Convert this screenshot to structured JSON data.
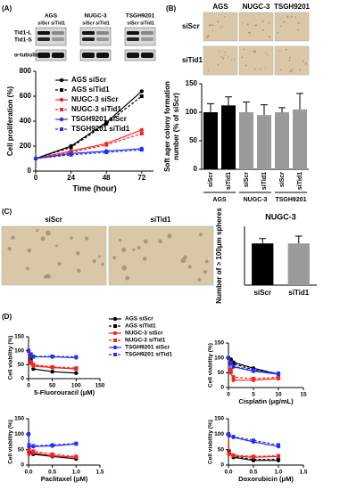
{
  "panel_labels": [
    "(A)",
    "(B)",
    "(C)",
    "(D)"
  ],
  "blot": {
    "groups": [
      "AGS",
      "NUGC-3",
      "TSGH9201"
    ],
    "lanes": [
      "siScr",
      "siTid1",
      "siScr",
      "siTid1",
      "siScr",
      "siTid1"
    ],
    "rows": [
      "Tid1-L",
      "Tid1-S",
      "α-tubulin"
    ]
  },
  "colony_photos": {
    "columns": [
      "AGS",
      "NUGC-3",
      "TSGH9201"
    ],
    "rows": [
      "siScr",
      "siTid1"
    ]
  },
  "sphere_photos": {
    "labels": [
      "siScr",
      "siTid1"
    ]
  },
  "chart_data": [
    {
      "type": "line",
      "xlabel": "Time (hour)",
      "ylabel": "Cell proliferation (%)",
      "x": [
        0,
        24,
        48,
        72
      ],
      "xlim": [
        0,
        80
      ],
      "xticks": [
        0,
        24,
        48,
        72
      ],
      "ylim": [
        0,
        800
      ],
      "yticks": [
        0,
        200,
        400,
        600,
        800
      ],
      "legend": true,
      "series": [
        {
          "name": "AGS siScr",
          "color": "#000000",
          "dashed": false,
          "marker": "circle",
          "values": [
            100,
            200,
            390,
            640
          ]
        },
        {
          "name": "AGS siTid1",
          "color": "#000000",
          "dashed": true,
          "marker": "square",
          "values": [
            100,
            190,
            380,
            600
          ]
        },
        {
          "name": "NUGC-3 siScr",
          "color": "#ff2020",
          "dashed": false,
          "marker": "circle",
          "values": [
            100,
            160,
            220,
            330
          ]
        },
        {
          "name": "NUGC-3 siTid1",
          "color": "#ff2020",
          "dashed": true,
          "marker": "square",
          "values": [
            100,
            150,
            210,
            300
          ]
        },
        {
          "name": "TSGH9201 siScr",
          "color": "#2030ff",
          "dashed": false,
          "marker": "circle",
          "values": [
            100,
            140,
            160,
            180
          ]
        },
        {
          "name": "TSGH9201 siTid1",
          "color": "#2030ff",
          "dashed": true,
          "marker": "square",
          "values": [
            100,
            130,
            150,
            170
          ]
        }
      ]
    },
    {
      "type": "bar",
      "ylabel": [
        "Soft ager colony formation",
        "number (% of siScr)"
      ],
      "categories": [
        "siScr",
        "siTid1",
        "siScr",
        "siTid1",
        "siScr",
        "siTid1"
      ],
      "groups": [
        "AGS",
        "NUGC-3",
        "TSGH9201"
      ],
      "values": [
        100,
        112,
        100,
        95,
        100,
        105
      ],
      "errors": [
        15,
        15,
        18,
        18,
        8,
        28
      ],
      "colors": [
        "#000000",
        "#000000",
        "#9a9a9a",
        "#9a9a9a",
        "#9a9a9a",
        "#9a9a9a"
      ],
      "ylim": [
        0,
        150
      ],
      "yticks": [
        0,
        50,
        100,
        150
      ]
    },
    {
      "type": "bar",
      "title": "NUGC-3",
      "ylabel": [
        "Number of > 100μm spheres"
      ],
      "categories": [
        "siScr",
        "siTid1"
      ],
      "values": [
        85,
        85
      ],
      "errors": [
        10,
        15
      ],
      "colors": [
        "#000000",
        "#9a9a9a"
      ],
      "ylim": [
        0,
        120
      ]
    },
    {
      "type": "line",
      "xlabel": "5-Fluorouracil (μM)",
      "ylabel": "Cell viability (%)",
      "x": [
        0,
        5,
        10,
        50,
        100
      ],
      "xlim": [
        0,
        150
      ],
      "xticks": [
        0,
        50,
        100,
        150
      ],
      "ylim": [
        0,
        150
      ],
      "yticks": [
        0,
        50,
        100,
        150
      ],
      "legend": true,
      "series": [
        {
          "name": "AGS siScr",
          "color": "#000000",
          "dashed": false,
          "marker": "circle",
          "values": [
            100,
            60,
            35,
            25,
            20
          ]
        },
        {
          "name": "AGS siTid1",
          "color": "#000000",
          "dashed": true,
          "marker": "square",
          "values": [
            100,
            70,
            50,
            40,
            35
          ]
        },
        {
          "name": "NUGC-3 siScr",
          "color": "#ff2020",
          "dashed": false,
          "marker": "circle",
          "values": [
            100,
            55,
            45,
            40,
            35
          ]
        },
        {
          "name": "NUGC-3 siTid1",
          "color": "#ff2020",
          "dashed": true,
          "marker": "square",
          "values": [
            100,
            60,
            50,
            42,
            38
          ]
        },
        {
          "name": "TSGH9201 siScr",
          "color": "#2030ff",
          "dashed": false,
          "marker": "circle",
          "values": [
            100,
            85,
            78,
            78,
            75
          ]
        },
        {
          "name": "TSGH9201 siTid1",
          "color": "#2030ff",
          "dashed": true,
          "marker": "square",
          "values": [
            100,
            88,
            80,
            80,
            78
          ]
        }
      ]
    },
    {
      "type": "line",
      "xlabel": "Cisplatin (μg/mL)",
      "ylabel": "Cell viability (%)",
      "x": [
        0,
        0.5,
        1,
        5,
        10
      ],
      "xlim": [
        0,
        15
      ],
      "xticks": [
        0,
        5,
        10,
        15
      ],
      "ylim": [
        0,
        150
      ],
      "yticks": [
        0,
        50,
        100,
        150
      ],
      "series": [
        {
          "color": "#000000",
          "dashed": false,
          "marker": "circle",
          "values": [
            100,
            95,
            85,
            65,
            45
          ]
        },
        {
          "color": "#000000",
          "dashed": true,
          "marker": "square",
          "values": [
            100,
            90,
            80,
            60,
            45
          ]
        },
        {
          "color": "#ff2020",
          "dashed": false,
          "marker": "circle",
          "values": [
            100,
            50,
            25,
            25,
            30
          ]
        },
        {
          "color": "#ff2020",
          "dashed": true,
          "marker": "square",
          "values": [
            100,
            60,
            35,
            30,
            35
          ]
        },
        {
          "color": "#2030ff",
          "dashed": false,
          "marker": "circle",
          "values": [
            100,
            80,
            70,
            55,
            45
          ]
        },
        {
          "color": "#2030ff",
          "dashed": true,
          "marker": "square",
          "values": [
            100,
            85,
            72,
            58,
            48
          ]
        }
      ]
    },
    {
      "type": "line",
      "xlabel": "Paclitaxel (μM)",
      "ylabel": "Cell viability (%)",
      "x": [
        0,
        0.01,
        0.1,
        0.5,
        1
      ],
      "xlim": [
        0,
        1.5
      ],
      "xticks": [
        {
          "value": 0,
          "label": "0.0"
        },
        0.5,
        {
          "value": 1,
          "label": "1.0"
        },
        1.5
      ],
      "ylim": [
        0,
        150
      ],
      "yticks": [
        0,
        50,
        100,
        150
      ],
      "series": [
        {
          "color": "#000000",
          "dashed": false,
          "marker": "circle",
          "values": [
            100,
            40,
            35,
            28,
            20
          ]
        },
        {
          "color": "#000000",
          "dashed": true,
          "marker": "square",
          "values": [
            100,
            45,
            38,
            30,
            25
          ]
        },
        {
          "color": "#ff2020",
          "dashed": false,
          "marker": "circle",
          "values": [
            100,
            35,
            40,
            30,
            25
          ]
        },
        {
          "color": "#ff2020",
          "dashed": true,
          "marker": "square",
          "values": [
            100,
            50,
            45,
            35,
            28
          ]
        },
        {
          "color": "#2030ff",
          "dashed": false,
          "marker": "circle",
          "values": [
            100,
            60,
            60,
            62,
            68
          ]
        },
        {
          "color": "#2030ff",
          "dashed": true,
          "marker": "square",
          "values": [
            100,
            65,
            62,
            65,
            70
          ]
        }
      ]
    },
    {
      "type": "line",
      "xlabel": "Doxorubicin (μM)",
      "ylabel": "Cell viability (%)",
      "x": [
        0,
        0.01,
        0.1,
        0.5,
        1
      ],
      "xlim": [
        0,
        1.5
      ],
      "xticks": [
        {
          "value": 0,
          "label": "0.0"
        },
        0.5,
        {
          "value": 1,
          "label": "1.0"
        },
        1.5
      ],
      "ylim": [
        0,
        150
      ],
      "yticks": [
        0,
        50,
        100,
        150
      ],
      "series": [
        {
          "color": "#000000",
          "dashed": false,
          "marker": "circle",
          "values": [
            100,
            40,
            25,
            15,
            15
          ]
        },
        {
          "color": "#000000",
          "dashed": true,
          "marker": "square",
          "values": [
            100,
            45,
            28,
            18,
            18
          ]
        },
        {
          "color": "#ff2020",
          "dashed": false,
          "marker": "circle",
          "values": [
            100,
            35,
            30,
            25,
            28
          ]
        },
        {
          "color": "#ff2020",
          "dashed": true,
          "marker": "square",
          "values": [
            100,
            38,
            32,
            28,
            30
          ]
        },
        {
          "color": "#2030ff",
          "dashed": false,
          "marker": "circle",
          "values": [
            100,
            95,
            90,
            75,
            60
          ]
        },
        {
          "color": "#2030ff",
          "dashed": true,
          "marker": "square",
          "values": [
            100,
            97,
            92,
            80,
            65
          ]
        }
      ]
    }
  ]
}
